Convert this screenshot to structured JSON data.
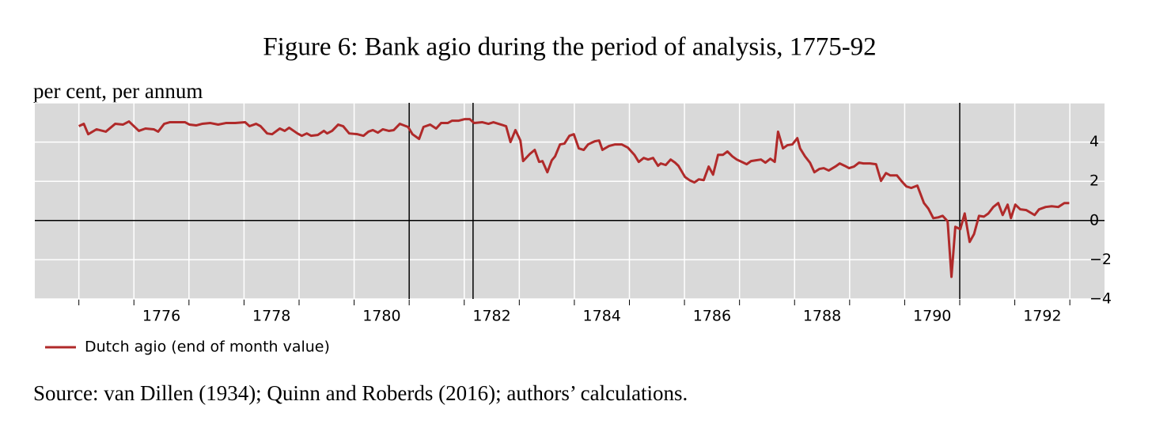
{
  "chart_data": {
    "type": "line",
    "title": "Figure 6: Bank agio during the period of analysis, 1775-92",
    "ylabel": "per cent, per annum",
    "source": "Source: van Dillen (1934); Quinn and Roberds (2016); authors’ calculations.",
    "xlim": [
      1774.2,
      1793.63
    ],
    "ylim": [
      -4,
      6
    ],
    "yticks": [
      {
        "value": -4,
        "label": "−4"
      },
      {
        "value": -2,
        "label": "−2"
      },
      0,
      2,
      4
    ],
    "ygrid": [
      -4,
      -2,
      0,
      2,
      4,
      6
    ],
    "xticks": [
      {
        "value": 1776.5,
        "label": "1776"
      },
      {
        "value": 1778.5,
        "label": "1778"
      },
      {
        "value": 1780.5,
        "label": "1780"
      },
      {
        "value": 1782.5,
        "label": "1782"
      },
      {
        "value": 1784.5,
        "label": "1784"
      },
      {
        "value": 1786.5,
        "label": "1786"
      },
      {
        "value": 1788.5,
        "label": "1788"
      },
      {
        "value": 1790.5,
        "label": "1790"
      },
      {
        "value": 1792.5,
        "label": "1792"
      }
    ],
    "xgrid": [
      1775,
      1776,
      1777,
      1778,
      1779,
      1780,
      1781,
      1782,
      1783,
      1784,
      1785,
      1786,
      1787,
      1788,
      1789,
      1790,
      1791,
      1792,
      1793
    ],
    "vlines": [
      1781,
      1782.16,
      1791
    ],
    "grid": true,
    "background": "#d9d9d9",
    "x": [
      1775.0,
      1775.09,
      1775.17,
      1775.32,
      1775.49,
      1775.66,
      1775.8,
      1775.91,
      1776.09,
      1776.21,
      1776.36,
      1776.44,
      1776.55,
      1776.65,
      1776.78,
      1776.93,
      1777.01,
      1777.13,
      1777.24,
      1777.39,
      1777.53,
      1777.67,
      1777.84,
      1778.02,
      1778.1,
      1778.22,
      1778.3,
      1778.42,
      1778.51,
      1778.65,
      1778.74,
      1778.82,
      1778.97,
      1779.05,
      1779.14,
      1779.22,
      1779.34,
      1779.45,
      1779.51,
      1779.6,
      1779.71,
      1779.8,
      1779.91,
      1780.06,
      1780.17,
      1780.26,
      1780.34,
      1780.43,
      1780.52,
      1780.63,
      1780.72,
      1780.83,
      1780.98,
      1781.06,
      1781.18,
      1781.26,
      1781.38,
      1781.49,
      1781.58,
      1781.7,
      1781.78,
      1781.9,
      1782.01,
      1782.1,
      1782.18,
      1782.33,
      1782.44,
      1782.53,
      1782.67,
      1782.76,
      1782.84,
      1782.93,
      1783.02,
      1783.07,
      1783.19,
      1783.28,
      1783.36,
      1783.42,
      1783.51,
      1783.59,
      1783.65,
      1783.74,
      1783.82,
      1783.91,
      1783.99,
      1784.08,
      1784.17,
      1784.25,
      1784.37,
      1784.45,
      1784.51,
      1784.63,
      1784.74,
      1784.86,
      1784.97,
      1785.09,
      1785.17,
      1785.26,
      1785.34,
      1785.43,
      1785.52,
      1785.57,
      1785.66,
      1785.75,
      1785.83,
      1785.89,
      1786.01,
      1786.09,
      1786.18,
      1786.26,
      1786.35,
      1786.44,
      1786.52,
      1786.61,
      1786.7,
      1786.78,
      1786.87,
      1786.95,
      1787.04,
      1787.13,
      1787.21,
      1787.3,
      1787.39,
      1787.47,
      1787.56,
      1787.64,
      1787.7,
      1787.79,
      1787.87,
      1787.96,
      1788.05,
      1788.1,
      1788.19,
      1788.28,
      1788.36,
      1788.45,
      1788.53,
      1788.62,
      1788.74,
      1788.82,
      1788.91,
      1788.99,
      1789.08,
      1789.17,
      1789.25,
      1789.37,
      1789.48,
      1789.57,
      1789.66,
      1789.74,
      1789.86,
      1789.94,
      1790.03,
      1790.12,
      1790.23,
      1790.35,
      1790.43,
      1790.52,
      1790.61,
      1790.69,
      1790.78,
      1790.85,
      1790.92,
      1791.01,
      1791.09,
      1791.18,
      1791.26,
      1791.35,
      1791.44,
      1791.52,
      1791.61,
      1791.7,
      1791.78,
      1791.87,
      1791.93,
      1792.01,
      1792.1,
      1792.21,
      1792.36,
      1792.44,
      1792.56,
      1792.67,
      1792.79,
      1792.9,
      1792.99
    ],
    "series": [
      {
        "name": "Dutch agio (end of month value)",
        "color": "#b02a2a",
        "values": [
          4.81,
          4.93,
          4.4,
          4.65,
          4.53,
          4.93,
          4.89,
          5.05,
          4.57,
          4.69,
          4.65,
          4.53,
          4.93,
          5.01,
          5.01,
          5.01,
          4.89,
          4.85,
          4.93,
          4.97,
          4.89,
          4.97,
          4.97,
          5.01,
          4.81,
          4.93,
          4.81,
          4.44,
          4.4,
          4.69,
          4.57,
          4.73,
          4.44,
          4.32,
          4.44,
          4.32,
          4.36,
          4.57,
          4.44,
          4.57,
          4.89,
          4.81,
          4.44,
          4.4,
          4.32,
          4.53,
          4.61,
          4.48,
          4.65,
          4.57,
          4.61,
          4.93,
          4.77,
          4.4,
          4.16,
          4.77,
          4.89,
          4.69,
          4.97,
          4.97,
          5.09,
          5.09,
          5.17,
          5.17,
          4.97,
          5.01,
          4.93,
          5.01,
          4.89,
          4.81,
          4.0,
          4.61,
          4.08,
          3.03,
          3.39,
          3.6,
          2.99,
          3.03,
          2.46,
          3.07,
          3.27,
          3.88,
          3.92,
          4.32,
          4.4,
          3.68,
          3.6,
          3.88,
          4.04,
          4.08,
          3.6,
          3.8,
          3.88,
          3.88,
          3.72,
          3.35,
          2.99,
          3.19,
          3.11,
          3.19,
          2.79,
          2.91,
          2.83,
          3.11,
          2.95,
          2.79,
          2.22,
          2.06,
          1.94,
          2.1,
          2.06,
          2.75,
          2.34,
          3.35,
          3.35,
          3.52,
          3.27,
          3.11,
          2.99,
          2.87,
          3.03,
          3.07,
          3.11,
          2.95,
          3.15,
          2.99,
          4.53,
          3.68,
          3.84,
          3.88,
          4.2,
          3.68,
          3.27,
          2.95,
          2.46,
          2.63,
          2.67,
          2.55,
          2.75,
          2.91,
          2.79,
          2.67,
          2.75,
          2.95,
          2.91,
          2.91,
          2.87,
          2.02,
          2.42,
          2.3,
          2.3,
          2.02,
          1.74,
          1.66,
          1.78,
          0.89,
          0.61,
          0.12,
          0.16,
          0.24,
          -0.04,
          -2.87,
          -0.32,
          -0.44,
          0.36,
          -1.09,
          -0.69,
          0.24,
          0.2,
          0.36,
          0.69,
          0.89,
          0.28,
          0.81,
          0.12,
          0.81,
          0.57,
          0.53,
          0.28,
          0.57,
          0.69,
          0.73,
          0.69,
          0.89,
          0.89
        ]
      }
    ]
  }
}
